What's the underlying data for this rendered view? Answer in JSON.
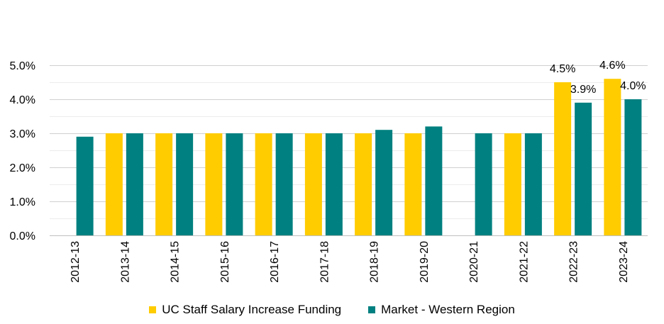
{
  "chart_data": {
    "type": "bar",
    "title": "",
    "xlabel": "",
    "ylabel": "",
    "ylim": [
      0,
      5
    ],
    "yticks": [
      0,
      1,
      2,
      3,
      4,
      5
    ],
    "ytick_labels": [
      "0.0%",
      "1.0%",
      "2.0%",
      "3.0%",
      "4.0%",
      "5.0%"
    ],
    "grid": true,
    "legend_position": "bottom",
    "categories": [
      "2012-13",
      "2013-14",
      "2014-15",
      "2015-16",
      "2016-17",
      "2017-18",
      "2018-19",
      "2019-20",
      "2020-21",
      "2021-22",
      "2022-23",
      "2023-24"
    ],
    "series": [
      {
        "name": "UC Staff Salary Increase Funding",
        "color": "#FFCC00",
        "values": [
          null,
          3.0,
          3.0,
          3.0,
          3.0,
          3.0,
          3.0,
          3.0,
          null,
          3.0,
          4.5,
          4.6
        ],
        "data_labels": [
          null,
          null,
          null,
          null,
          null,
          null,
          null,
          null,
          null,
          null,
          "4.5%",
          "4.6%"
        ]
      },
      {
        "name": "Market - Western Region",
        "color": "#008080",
        "values": [
          2.9,
          3.0,
          3.0,
          3.0,
          3.0,
          3.0,
          3.1,
          3.2,
          3.0,
          3.0,
          3.9,
          4.0
        ],
        "data_labels": [
          null,
          null,
          null,
          null,
          null,
          null,
          null,
          null,
          null,
          null,
          "3.9%",
          "4.0%"
        ]
      }
    ]
  }
}
